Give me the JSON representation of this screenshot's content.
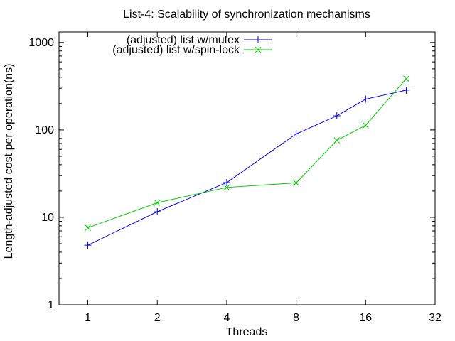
{
  "chart_data": {
    "type": "line",
    "title": "List-4: Scalability of synchronization mechanisms",
    "xlabel": "Threads",
    "ylabel": "Length-adjusted cost per operation(ns)",
    "x_scale": "log2",
    "y_scale": "log10",
    "xlim": [
      0.75,
      32
    ],
    "ylim": [
      1,
      1320
    ],
    "x_ticks": [
      1,
      2,
      4,
      8,
      16,
      32
    ],
    "y_ticks": [
      1,
      10,
      100,
      1000
    ],
    "grid": false,
    "legend_position": "top-inside",
    "x": [
      1,
      2,
      4,
      8,
      12,
      16,
      24
    ],
    "series": [
      {
        "name": "(adjusted) list w/mutex",
        "color": "#0000ee",
        "marker": "plus",
        "values": [
          4.8,
          11.6,
          25,
          90,
          145,
          225,
          285
        ]
      },
      {
        "name": "(adjusted) list w/spin-lock",
        "color": "#00cc00",
        "marker": "cross",
        "values": [
          7.6,
          14.7,
          22,
          24.8,
          76,
          113,
          385
        ]
      }
    ]
  },
  "colors": {
    "background": "#ffffff",
    "frame": "#000000",
    "text": "#000000"
  }
}
